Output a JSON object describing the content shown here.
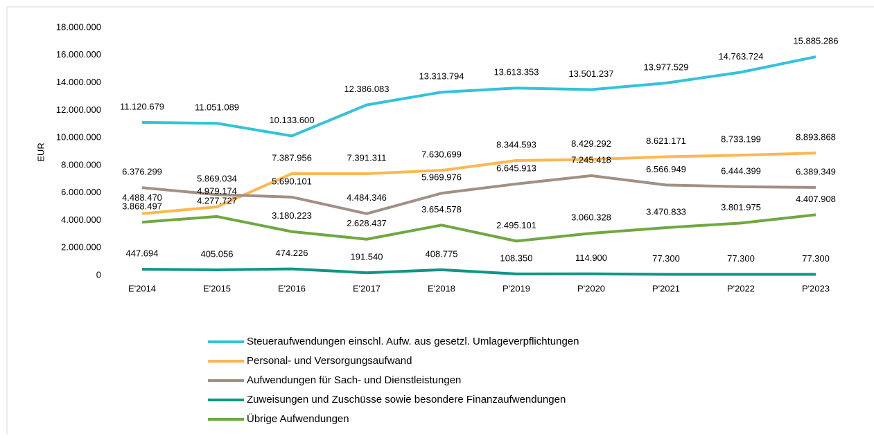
{
  "chart_data": {
    "type": "line",
    "y_label": "EUR",
    "categories": [
      "E'2014",
      "E'2015",
      "E'2016",
      "E'2017",
      "E'2018",
      "P'2019",
      "P'2020",
      "P'2021",
      "P'2022",
      "P'2023"
    ],
    "series": [
      {
        "name": "Steueraufwendungen einschl. Aufw. aus gesetzl. Umlageverpflichtungen",
        "color": "#33c3d8",
        "values": [
          11120679,
          11051089,
          10133600,
          12386083,
          13313794,
          13613353,
          13501237,
          13977529,
          14763724,
          15885286
        ],
        "value_labels": [
          "11.120.679",
          "11.051.089",
          "10.133.600",
          "12.386.083",
          "13.313.794",
          "13.613.353",
          "13.501.237",
          "13.977.529",
          "14.763.724",
          "15.885.286"
        ]
      },
      {
        "name": "Personal- und Versorgungsaufwand",
        "color": "#fdb752",
        "values": [
          4488470,
          4979174,
          7387956,
          7391311,
          7630699,
          8344593,
          8429292,
          8621171,
          8733199,
          8893868
        ],
        "value_labels": [
          "4.488.470",
          "4.979.174",
          "7.387.956",
          "7.391.311",
          "7.630.699",
          "8.344.593",
          "8.429.292",
          "8.621.171",
          "8.733.199",
          "8.893.868"
        ]
      },
      {
        "name": "Aufwendungen für Sach- und Dienstleistungen",
        "color": "#a28f84",
        "values": [
          6376299,
          5869034,
          5690101,
          4484346,
          5969976,
          6645913,
          7245418,
          6566949,
          6444399,
          6389349
        ],
        "value_labels": [
          "6.376.299",
          "5.869.034",
          "5.690.101",
          "4.484.346",
          "5.969.976",
          "6.645.913",
          "7.245.418",
          "6.566.949",
          "6.444.399",
          "6.389.349"
        ]
      },
      {
        "name": "Zuweisungen und Zuschüsse sowie besondere Finanzaufwendungen",
        "color": "#0e9585",
        "values": [
          447694,
          405056,
          474226,
          191540,
          408775,
          108350,
          114900,
          77300,
          77300,
          77300
        ],
        "value_labels": [
          "447.694",
          "405.056",
          "474.226",
          "191.540",
          "408.775",
          "108.350",
          "114.900",
          "77.300",
          "77.300",
          "77.300"
        ]
      },
      {
        "name": "Übrige Aufwendungen",
        "color": "#70a840",
        "values": [
          3868497,
          4277727,
          3180223,
          2628437,
          3654578,
          2495101,
          3060328,
          3470833,
          3801975,
          4407908
        ],
        "value_labels": [
          "3.868.497",
          "4.277.727",
          "3.180.223",
          "2.628.437",
          "3.654.578",
          "2.495.101",
          "3.060.328",
          "3.470.833",
          "3.801.975",
          "4.407.908"
        ]
      }
    ],
    "ylim": [
      0,
      18000000
    ],
    "yticks": [
      0,
      {
        "value": 2000000,
        "label": "2.000.000"
      },
      {
        "value": 4000000,
        "label": "4.000.000"
      },
      {
        "value": 6000000,
        "label": "6.000.000"
      },
      {
        "value": 8000000,
        "label": "8.000.000"
      },
      {
        "value": 10000000,
        "label": "10.000.000"
      },
      {
        "value": 12000000,
        "label": "12.000.000"
      },
      {
        "value": 14000000,
        "label": "14.000.000"
      },
      {
        "value": 16000000,
        "label": "16.000.000"
      },
      {
        "value": 18000000,
        "label": "18.000.000"
      }
    ],
    "grid": false,
    "legend": "bottom"
  }
}
